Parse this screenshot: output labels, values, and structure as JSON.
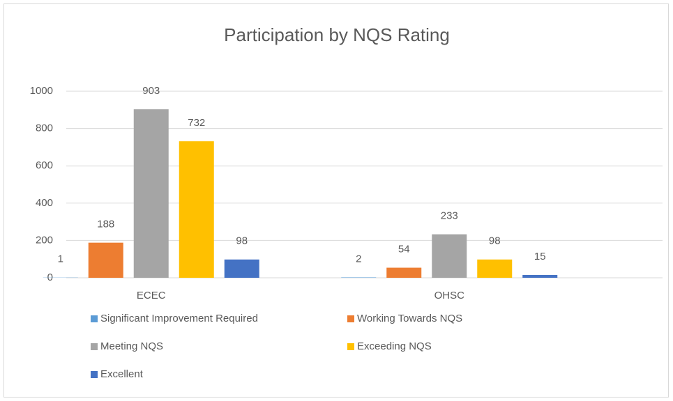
{
  "chart_data": {
    "type": "bar",
    "title": "Participation by NQS Rating",
    "categories": [
      "ECEC",
      "OHSC"
    ],
    "series": [
      {
        "name": "Significant Improvement Required",
        "color": "#5b9bd5",
        "values": [
          1,
          2
        ]
      },
      {
        "name": "Working Towards NQS",
        "color": "#ed7d31",
        "values": [
          188,
          54
        ]
      },
      {
        "name": "Meeting NQS",
        "color": "#a5a5a5",
        "values": [
          903,
          233
        ]
      },
      {
        "name": "Exceeding NQS",
        "color": "#ffc000",
        "values": [
          732,
          98
        ]
      },
      {
        "name": "Excellent",
        "color": "#4472c4",
        "values": [
          98,
          15
        ]
      }
    ],
    "ylim": [
      0,
      1000
    ],
    "yticks": [
      0,
      200,
      400,
      600,
      800,
      1000
    ],
    "grid": true,
    "legend": "bottom"
  }
}
